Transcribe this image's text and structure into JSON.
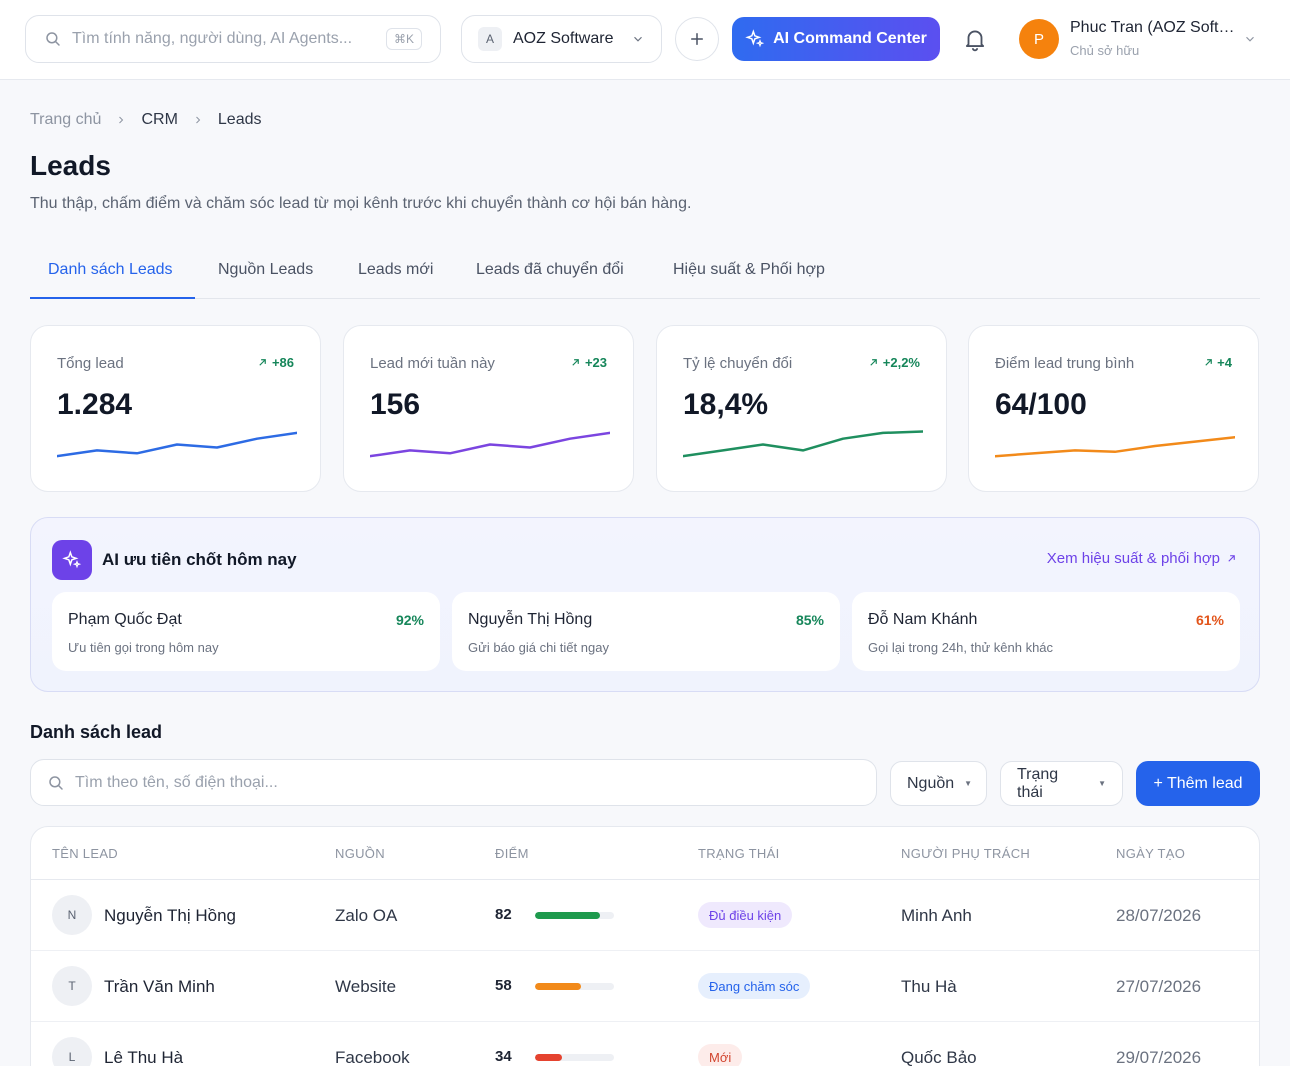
{
  "topbar": {
    "search_placeholder": "Tìm tính năng, người dùng, AI Agents...",
    "shortcut": "⌘K",
    "org_badge": "A",
    "org_name": "AOZ Software",
    "ai_command_label": "AI Command Center",
    "user_initial": "P",
    "user_name": "Phuc Tran (AOZ Software)",
    "user_role": "Chủ sở hữu"
  },
  "breadcrumb": [
    "Trang chủ",
    "CRM",
    "Leads"
  ],
  "page": {
    "title": "Leads",
    "subtitle": "Thu thập, chấm điểm và chăm sóc lead từ mọi kênh trước khi chuyển thành cơ hội bán hàng."
  },
  "tabs": [
    {
      "label": "Danh sách Leads",
      "active": true
    },
    {
      "label": "Nguồn Leads",
      "active": false
    },
    {
      "label": "Leads mới",
      "active": false
    },
    {
      "label": "Leads đã chuyển đổi",
      "active": false
    },
    {
      "label": "Hiệu suất & Phối hợp",
      "active": false
    }
  ],
  "stats": [
    {
      "label": "Tổng lead",
      "value": "1.284",
      "delta": "+86",
      "color": "#2d6be4",
      "trend": [
        2,
        4,
        3,
        6,
        5,
        8,
        10
      ]
    },
    {
      "label": "Lead mới tuần này",
      "value": "156",
      "delta": "+23",
      "color": "#7b45e0",
      "trend": [
        2,
        4,
        3,
        6,
        5,
        8,
        10
      ]
    },
    {
      "label": "Tỷ lệ chuyển đổi",
      "value": "18,4%",
      "delta": "+2,2%",
      "color": "#1f8f5f",
      "trend": [
        2,
        4,
        6,
        4,
        8,
        10,
        10.5
      ]
    },
    {
      "label": "Điểm lead trung bình",
      "value": "64/100",
      "delta": "+4",
      "color": "#f28a1a",
      "trend": [
        2,
        3,
        4,
        3.5,
        5.5,
        7,
        8.5
      ]
    }
  ],
  "ai_panel": {
    "title": "AI ưu tiên chốt hôm nay",
    "link": "Xem hiệu suất & phối hợp",
    "items": [
      {
        "name": "Phạm Quốc Đạt",
        "percent": "92%",
        "note": "Ưu tiên gọi trong hôm nay",
        "color": "#16865a"
      },
      {
        "name": "Nguyễn Thị Hồng",
        "percent": "85%",
        "note": "Gửi báo giá chi tiết ngay",
        "color": "#16865a"
      },
      {
        "name": "Đỗ Nam Khánh",
        "percent": "61%",
        "note": "Gọi lại trong 24h, thử kênh khác",
        "color": "#e2541a"
      }
    ]
  },
  "lead_list": {
    "title": "Danh sách lead",
    "search_placeholder": "Tìm theo tên, số điện thoại...",
    "filter_source": "Nguồn",
    "filter_status": "Trạng thái",
    "add_label": "+ Thêm lead",
    "columns": [
      "TÊN LEAD",
      "NGUỒN",
      "ĐIỂM",
      "TRẠNG THÁI",
      "NGƯỜI PHỤ TRÁCH",
      "NGÀY TẠO"
    ],
    "rows": [
      {
        "initial": "N",
        "name": "Nguyễn Thị Hồng",
        "source": "Zalo OA",
        "score": "82",
        "score_pct": 82,
        "bar_color": "#1e9a4d",
        "status": "Đủ điều kiện",
        "status_bg": "#efe9fd",
        "status_fg": "#6d42e8",
        "owner": "Minh Anh",
        "date": "28/07/2026"
      },
      {
        "initial": "T",
        "name": "Trần Văn Minh",
        "source": "Website",
        "score": "58",
        "score_pct": 58,
        "bar_color": "#f28a1a",
        "status": "Đang chăm sóc",
        "status_bg": "#e6effd",
        "status_fg": "#2563eb",
        "owner": "Thu Hà",
        "date": "27/07/2026"
      },
      {
        "initial": "L",
        "name": "Lê Thu Hà",
        "source": "Facebook",
        "score": "34",
        "score_pct": 34,
        "bar_color": "#e5432f",
        "status": "Mới",
        "status_bg": "#fdecea",
        "status_fg": "#d2452f",
        "owner": "Quốc Bảo",
        "date": "29/07/2026"
      }
    ]
  }
}
